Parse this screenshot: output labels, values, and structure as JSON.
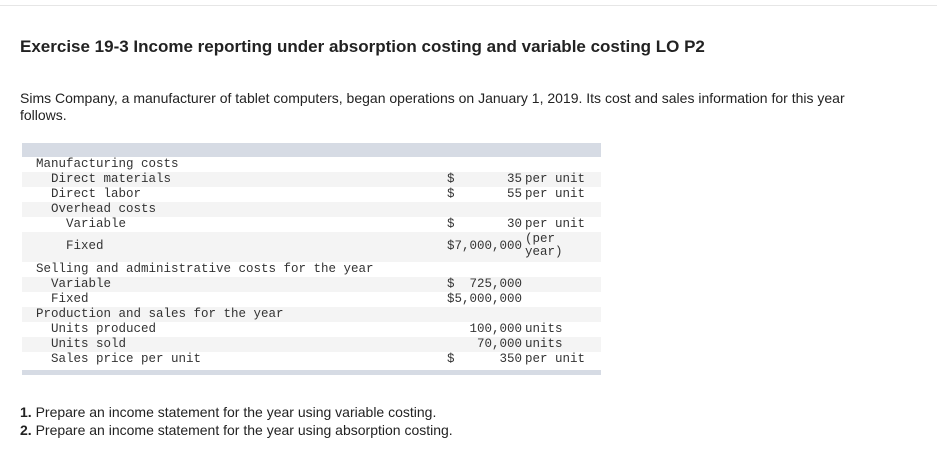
{
  "title": "Exercise 19-3 Income reporting under absorption costing and variable costing LO P2",
  "intro": [
    "Sims Company, a manufacturer of tablet computers, began operations on January 1, 2019. Its cost and sales information for this year",
    "follows."
  ],
  "table": {
    "rows": [
      {
        "label": "Manufacturing costs",
        "level": 0,
        "dollar": "",
        "amount": "",
        "unit": ""
      },
      {
        "label": "Direct materials",
        "level": 1,
        "dollar": "$",
        "amount": "35",
        "unit": "per unit"
      },
      {
        "label": "Direct labor",
        "level": 1,
        "dollar": "$",
        "amount": "55",
        "unit": "per unit"
      },
      {
        "label": "Overhead costs",
        "level": 1,
        "dollar": "",
        "amount": "",
        "unit": ""
      },
      {
        "label": "Variable",
        "level": 2,
        "dollar": "$",
        "amount": "30",
        "unit": "per unit"
      },
      {
        "label": "Fixed",
        "level": 2,
        "dollar": "$7,000,000",
        "amount": "",
        "unit": "(per year)"
      },
      {
        "label": "Selling and administrative costs for the year",
        "level": 0,
        "dollar": "",
        "amount": "",
        "unit": ""
      },
      {
        "label": "Variable",
        "level": 1,
        "dollar": "$",
        "amount": "725,000",
        "unit": ""
      },
      {
        "label": "Fixed",
        "level": 1,
        "dollar": "$5,000,000",
        "amount": "",
        "unit": ""
      },
      {
        "label": "Production and sales for the year",
        "level": 0,
        "dollar": "",
        "amount": "",
        "unit": ""
      },
      {
        "label": "Units produced",
        "level": 1,
        "dollar": "",
        "amount": "100,000",
        "unit": "units"
      },
      {
        "label": "Units sold",
        "level": 1,
        "dollar": "",
        "amount": "70,000",
        "unit": "units"
      },
      {
        "label": "Sales price per unit",
        "level": 1,
        "dollar": "$",
        "amount": "350",
        "unit": "per unit"
      }
    ]
  },
  "tasks": [
    {
      "num": "1.",
      "text": " Prepare an income statement for the year using variable costing."
    },
    {
      "num": "2.",
      "text": " Prepare an income statement for the year using absorption costing."
    }
  ]
}
